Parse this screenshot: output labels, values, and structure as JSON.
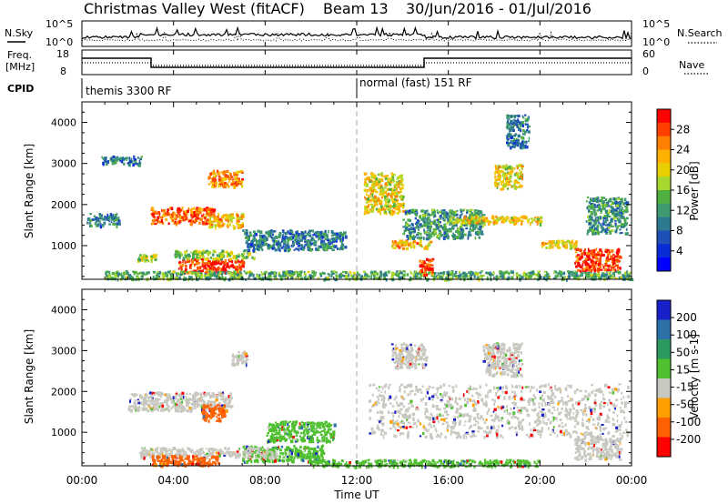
{
  "header": {
    "title": "Christmas Valley West (fitACF)",
    "beam": "Beam 13",
    "date_range": "30/Jun/2016 - 01/Jul/2016"
  },
  "status": {
    "nsky_label": "N.Sky",
    "nsky_ticks": [
      "10^5",
      "10^0"
    ],
    "nsearch_label": "N.Search",
    "nsearch_ticks": [
      "10^5",
      "10^0"
    ],
    "freq_label_line1": "Freq.",
    "freq_label_line2": "[MHz]",
    "freq_ticks": [
      "18",
      "8"
    ],
    "nave_label": "Nave",
    "nave_ticks": [
      "60",
      "0"
    ],
    "cpid_label": "CPID",
    "cpid_segments": [
      {
        "start_hour": 0,
        "label": "themis 3300 RF"
      },
      {
        "start_hour": 12,
        "label": "normal (fast) 151 RF"
      }
    ]
  },
  "chart_data": [
    {
      "type": "heatmap",
      "name": "power",
      "ylabel": "Slant Range [km]",
      "xlabel": "Time UT",
      "xlim_hours": [
        0,
        24
      ],
      "ylim_km": [
        180,
        4500
      ],
      "x_ticks": [
        "00:00",
        "04:00",
        "08:00",
        "12:00",
        "16:00",
        "20:00",
        "00:00"
      ],
      "y_ticks": [
        1000,
        2000,
        3000,
        4000
      ],
      "colorbar": {
        "label": "Power [dB]",
        "tick_labels": [
          "28",
          "24",
          "20",
          "16",
          "12",
          "8",
          "4"
        ],
        "colors": [
          "#ff0000",
          "#ff3f00",
          "#ff7f00",
          "#ffb000",
          "#e8d000",
          "#a8d830",
          "#50b040",
          "#3f9a70",
          "#2d7a90",
          "#1e50b8",
          "#0a2cd8",
          "#0000ff"
        ]
      },
      "patches": [
        {
          "t": [
            3.0,
            5.8
          ],
          "r": [
            1550,
            1950
          ],
          "level": 26
        },
        {
          "t": [
            5.5,
            7.0
          ],
          "r": [
            1450,
            1800
          ],
          "level": 22
        },
        {
          "t": [
            5.5,
            7.0
          ],
          "r": [
            2450,
            2850
          ],
          "level": 24
        },
        {
          "t": [
            0.2,
            1.6
          ],
          "r": [
            1500,
            1800
          ],
          "level": 10
        },
        {
          "t": [
            0.8,
            2.6
          ],
          "r": [
            3000,
            3200
          ],
          "level": 10
        },
        {
          "t": [
            2.4,
            3.2
          ],
          "r": [
            650,
            800
          ],
          "level": 18
        },
        {
          "t": [
            4.2,
            7.0
          ],
          "r": [
            350,
            700
          ],
          "level": 28
        },
        {
          "t": [
            4.0,
            7.5
          ],
          "r": [
            700,
            900
          ],
          "level": 16
        },
        {
          "t": [
            7.0,
            11.5
          ],
          "r": [
            900,
            1400
          ],
          "level": 10
        },
        {
          "t": [
            1.0,
            24.0
          ],
          "r": [
            200,
            400
          ],
          "level": 14
        },
        {
          "t": [
            12.3,
            14.0
          ],
          "r": [
            1800,
            2800
          ],
          "level": 20
        },
        {
          "t": [
            13.5,
            15.2
          ],
          "r": [
            950,
            1150
          ],
          "level": 22
        },
        {
          "t": [
            14.7,
            15.3
          ],
          "r": [
            300,
            700
          ],
          "level": 28
        },
        {
          "t": [
            14.0,
            17.5
          ],
          "r": [
            1200,
            1900
          ],
          "level": 12
        },
        {
          "t": [
            16.0,
            20.0
          ],
          "r": [
            1550,
            1750
          ],
          "level": 20
        },
        {
          "t": [
            18.0,
            19.2
          ],
          "r": [
            2400,
            3000
          ],
          "level": 20
        },
        {
          "t": [
            20.0,
            21.6
          ],
          "r": [
            950,
            1150
          ],
          "level": 20
        },
        {
          "t": [
            21.5,
            23.5
          ],
          "r": [
            400,
            950
          ],
          "level": 28
        },
        {
          "t": [
            22.0,
            23.8
          ],
          "r": [
            1300,
            2200
          ],
          "level": 12
        },
        {
          "t": [
            18.5,
            19.5
          ],
          "r": [
            3400,
            4200
          ],
          "level": 10
        }
      ]
    },
    {
      "type": "heatmap",
      "name": "velocity",
      "ylabel": "Slant Range [km]",
      "xlabel": "Time UT",
      "xlim_hours": [
        0,
        24
      ],
      "ylim_km": [
        180,
        4500
      ],
      "x_ticks": [
        "00:00",
        "04:00",
        "08:00",
        "12:00",
        "16:00",
        "20:00",
        "00:00"
      ],
      "y_ticks": [
        1000,
        2000,
        3000,
        4000
      ],
      "colorbar": {
        "label": "Velocity [m s-1]",
        "tick_labels": [
          "200",
          "100",
          "50",
          "15",
          "-15",
          "-50",
          "-100",
          "-200"
        ],
        "colors": [
          "#1820c8",
          "#2c70a8",
          "#2c9a60",
          "#50c030",
          "#c8c8c0",
          "#ffa000",
          "#ff6000",
          "#ff0000"
        ]
      },
      "patches": [
        {
          "t": [
            2.0,
            6.5
          ],
          "r": [
            1550,
            2000
          ],
          "value": 0
        },
        {
          "t": [
            5.2,
            6.2
          ],
          "r": [
            1300,
            1700
          ],
          "value": -60
        },
        {
          "t": [
            6.5,
            7.2
          ],
          "r": [
            2650,
            3000
          ],
          "value": 0
        },
        {
          "t": [
            8.0,
            11.0
          ],
          "r": [
            800,
            1300
          ],
          "value": 40
        },
        {
          "t": [
            7.0,
            10.5
          ],
          "r": [
            300,
            700
          ],
          "value": 40
        },
        {
          "t": [
            2.5,
            8.5
          ],
          "r": [
            400,
            650
          ],
          "value": 0
        },
        {
          "t": [
            3.0,
            6.0
          ],
          "r": [
            200,
            450
          ],
          "value": -60
        },
        {
          "t": [
            10.0,
            20.0
          ],
          "r": [
            180,
            350
          ],
          "value": 30
        },
        {
          "t": [
            12.5,
            23.8
          ],
          "r": [
            900,
            2200
          ],
          "value": 0
        },
        {
          "t": [
            13.5,
            15.0
          ],
          "r": [
            2600,
            3200
          ],
          "value": 0
        },
        {
          "t": [
            17.5,
            19.2
          ],
          "r": [
            2400,
            3200
          ],
          "value": 0
        },
        {
          "t": [
            21.5,
            23.5
          ],
          "r": [
            350,
            900
          ],
          "value": 0
        }
      ]
    }
  ]
}
